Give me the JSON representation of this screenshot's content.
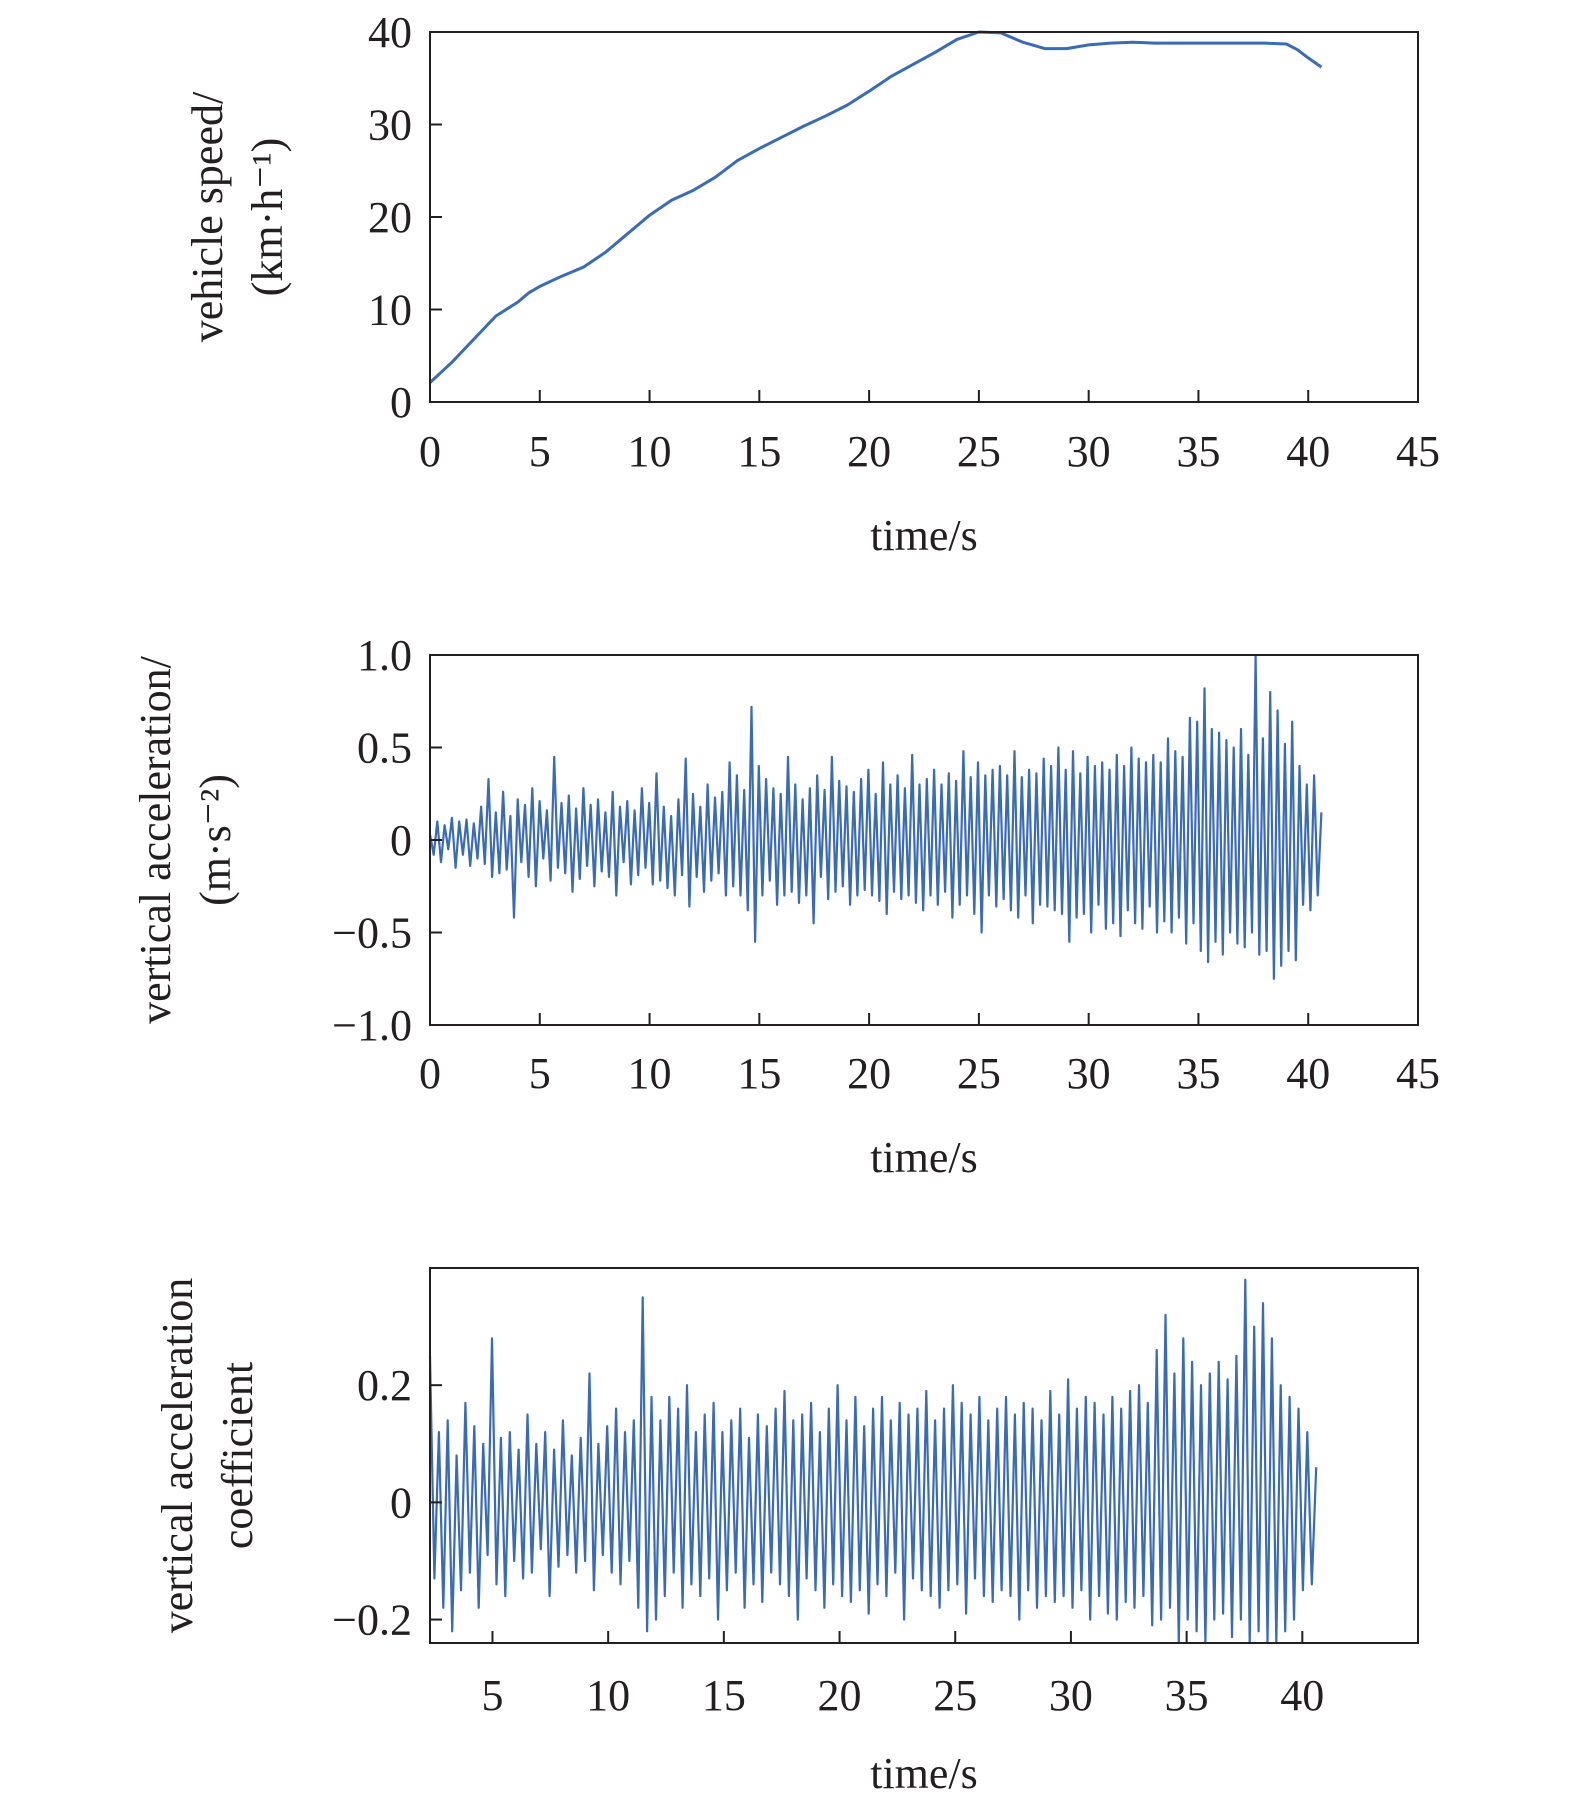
{
  "colors": {
    "series": "#3b6bb5",
    "axis": "#231f20"
  },
  "chart_data": [
    {
      "type": "line",
      "title": "",
      "xlabel": "time/s",
      "ylabel_lines": [
        "vehicle speed/",
        "(km·h⁻¹)"
      ],
      "xlim": [
        0,
        45
      ],
      "ylim": [
        0,
        40
      ],
      "xticks": [
        0,
        5,
        10,
        15,
        20,
        25,
        30,
        35,
        40,
        45
      ],
      "xtick_labels": [
        "0",
        "5",
        "10",
        "15",
        "20",
        "25",
        "30",
        "35",
        "40",
        "45"
      ],
      "yticks": [
        0,
        10,
        20,
        30,
        40
      ],
      "ytick_labels": [
        "0",
        "10",
        "20",
        "30",
        "40"
      ],
      "series": [
        {
          "name": "vehicle speed",
          "x": [
            0,
            1,
            2,
            3,
            4,
            4.5,
            5,
            6,
            7,
            8,
            9,
            10,
            11,
            12,
            13,
            14,
            15,
            16,
            17,
            18,
            19,
            20,
            21,
            22,
            23,
            24,
            25,
            26,
            27,
            28,
            29,
            30,
            31,
            32,
            33,
            34,
            35,
            36,
            37,
            38,
            39,
            39.5,
            40,
            40.6
          ],
          "y": [
            2.1,
            4.3,
            6.8,
            9.3,
            10.8,
            11.8,
            12.5,
            13.6,
            14.6,
            16.2,
            18.2,
            20.2,
            21.8,
            22.9,
            24.3,
            26.1,
            27.4,
            28.6,
            29.8,
            30.9,
            32.1,
            33.6,
            35.2,
            36.5,
            37.8,
            39.2,
            40.0,
            39.9,
            38.9,
            38.2,
            38.2,
            38.6,
            38.8,
            38.9,
            38.8,
            38.8,
            38.8,
            38.8,
            38.8,
            38.8,
            38.7,
            38.1,
            37.2,
            36.2
          ]
        }
      ]
    },
    {
      "type": "line",
      "title": "",
      "xlabel": "time/s",
      "ylabel_lines": [
        "vertical acceleration/",
        "(m·s⁻²)"
      ],
      "xlim": [
        0,
        45
      ],
      "ylim": [
        -1.0,
        1.0
      ],
      "xticks": [
        0,
        5,
        10,
        15,
        20,
        25,
        30,
        35,
        40,
        45
      ],
      "xtick_labels": [
        "0",
        "5",
        "10",
        "15",
        "20",
        "25",
        "30",
        "35",
        "40",
        "45"
      ],
      "yticks": [
        1.0,
        0.5,
        0,
        -0.5,
        -1.0
      ],
      "ytick_labels": [
        "1.0",
        "0.5",
        "0",
        "−0.5",
        "−1.0"
      ],
      "series": [
        {
          "name": "vertical acceleration",
          "x_start": 0,
          "x_end": 40.6,
          "y": [
            0.03,
            -0.08,
            0.1,
            -0.12,
            0.08,
            -0.05,
            0.12,
            -0.15,
            0.1,
            -0.08,
            0.11,
            -0.14,
            0.09,
            -0.1,
            0.18,
            -0.13,
            0.33,
            -0.2,
            0.15,
            -0.18,
            0.26,
            -0.16,
            0.13,
            -0.42,
            0.22,
            -0.12,
            0.19,
            -0.2,
            0.28,
            -0.25,
            0.21,
            -0.1,
            0.16,
            -0.22,
            0.45,
            -0.15,
            0.2,
            -0.18,
            0.24,
            -0.28,
            0.17,
            -0.21,
            0.28,
            -0.14,
            0.19,
            -0.25,
            0.22,
            -0.17,
            0.15,
            -0.2,
            0.26,
            -0.3,
            0.18,
            -0.12,
            0.21,
            -0.24,
            0.16,
            -0.19,
            0.28,
            -0.15,
            0.2,
            -0.24,
            0.36,
            -0.22,
            0.18,
            -0.26,
            0.13,
            -0.3,
            0.22,
            -0.19,
            0.44,
            -0.36,
            0.25,
            -0.2,
            0.18,
            -0.28,
            0.3,
            -0.22,
            0.23,
            -0.18,
            0.26,
            -0.3,
            0.42,
            -0.25,
            0.35,
            -0.3,
            0.27,
            -0.38,
            0.72,
            -0.55,
            0.4,
            -0.3,
            0.33,
            -0.22,
            0.28,
            -0.35,
            0.25,
            -0.3,
            0.45,
            -0.28,
            0.3,
            -0.34,
            0.22,
            -0.3,
            0.28,
            -0.45,
            0.35,
            -0.2,
            0.27,
            -0.32,
            0.45,
            -0.28,
            0.32,
            -0.25,
            0.29,
            -0.35,
            0.26,
            -0.3,
            0.33,
            -0.27,
            0.38,
            -0.3,
            0.25,
            -0.33,
            0.42,
            -0.4,
            0.3,
            -0.28,
            0.35,
            -0.32,
            0.28,
            -0.3,
            0.46,
            -0.34,
            0.3,
            -0.38,
            0.33,
            -0.3,
            0.38,
            -0.35,
            0.3,
            -0.28,
            0.36,
            -0.42,
            0.32,
            -0.35,
            0.48,
            -0.3,
            0.34,
            -0.4,
            0.42,
            -0.5,
            0.35,
            -0.3,
            0.38,
            -0.36,
            0.4,
            -0.32,
            0.35,
            -0.38,
            0.48,
            -0.42,
            0.34,
            -0.3,
            0.38,
            -0.45,
            0.36,
            -0.35,
            0.44,
            -0.36,
            0.4,
            -0.38,
            0.5,
            -0.4,
            0.38,
            -0.55,
            0.48,
            -0.42,
            0.36,
            -0.4,
            0.45,
            -0.5,
            0.4,
            -0.35,
            0.42,
            -0.48,
            0.38,
            -0.45,
            0.46,
            -0.52,
            0.4,
            -0.38,
            0.5,
            -0.45,
            0.44,
            -0.48,
            0.42,
            -0.36,
            0.46,
            -0.5,
            0.42,
            -0.44,
            0.55,
            -0.5,
            0.48,
            -0.42,
            0.45,
            -0.56,
            0.66,
            -0.45,
            0.64,
            -0.6,
            0.82,
            -0.66,
            0.6,
            -0.55,
            0.58,
            -0.62,
            0.54,
            -0.5,
            0.5,
            -0.56,
            0.6,
            -0.58,
            0.46,
            -0.5,
            1.0,
            -0.62,
            0.55,
            -0.6,
            0.8,
            -0.75,
            0.7,
            -0.68,
            0.52,
            -0.6,
            0.64,
            -0.65,
            0.4,
            -0.35,
            0.3,
            -0.38,
            0.35,
            -0.3,
            0.15
          ]
        }
      ]
    },
    {
      "type": "line",
      "title": "",
      "xlabel": "time/s",
      "ylabel_lines": [
        "vertical acceleration",
        "coefficient"
      ],
      "xlim": [
        2.3,
        45
      ],
      "ylim": [
        -0.24,
        0.4
      ],
      "xticks": [
        5,
        10,
        15,
        20,
        25,
        30,
        35,
        40
      ],
      "xtick_labels": [
        "5",
        "10",
        "15",
        "20",
        "25",
        "30",
        "35",
        "40"
      ],
      "yticks": [
        0.2,
        0,
        -0.2
      ],
      "ytick_labels": [
        "0.2",
        "0",
        "−0.2"
      ],
      "series": [
        {
          "name": "vertical acceleration coefficient",
          "x_start": 2.3,
          "x_end": 40.6,
          "y": [
            0.25,
            -0.13,
            0.12,
            -0.18,
            0.14,
            -0.22,
            0.08,
            -0.15,
            0.17,
            -0.12,
            0.13,
            -0.18,
            0.1,
            -0.09,
            0.28,
            -0.14,
            0.11,
            -0.16,
            0.12,
            -0.1,
            0.09,
            -0.13,
            0.15,
            -0.12,
            0.1,
            -0.08,
            0.12,
            -0.16,
            0.09,
            -0.11,
            0.14,
            -0.09,
            0.08,
            -0.12,
            0.11,
            -0.1,
            0.22,
            -0.15,
            0.1,
            -0.09,
            0.13,
            -0.12,
            0.16,
            -0.14,
            0.12,
            -0.1,
            0.14,
            -0.18,
            0.35,
            -0.22,
            0.18,
            -0.2,
            0.14,
            -0.16,
            0.18,
            -0.12,
            0.16,
            -0.18,
            0.2,
            -0.14,
            0.12,
            -0.16,
            0.15,
            -0.13,
            0.17,
            -0.2,
            0.12,
            -0.15,
            0.14,
            -0.12,
            0.16,
            -0.18,
            0.11,
            -0.14,
            0.15,
            -0.17,
            0.13,
            -0.12,
            0.16,
            -0.14,
            0.19,
            -0.16,
            0.14,
            -0.2,
            0.15,
            -0.13,
            0.17,
            -0.15,
            0.12,
            -0.18,
            0.16,
            -0.14,
            0.2,
            -0.16,
            0.14,
            -0.17,
            0.18,
            -0.15,
            0.13,
            -0.19,
            0.16,
            -0.14,
            0.18,
            -0.16,
            0.14,
            -0.12,
            0.17,
            -0.2,
            0.15,
            -0.13,
            0.16,
            -0.15,
            0.19,
            -0.16,
            0.14,
            -0.18,
            0.16,
            -0.15,
            0.2,
            -0.14,
            0.17,
            -0.19,
            0.15,
            -0.13,
            0.18,
            -0.16,
            0.14,
            -0.17,
            0.16,
            -0.15,
            0.18,
            -0.16,
            0.15,
            -0.2,
            0.17,
            -0.15,
            0.16,
            -0.18,
            0.14,
            -0.16,
            0.19,
            -0.17,
            0.15,
            -0.16,
            0.21,
            -0.18,
            0.16,
            -0.15,
            0.18,
            -0.2,
            0.17,
            -0.16,
            0.15,
            -0.19,
            0.18,
            -0.2,
            0.16,
            -0.17,
            0.19,
            -0.18,
            0.2,
            -0.16,
            0.17,
            -0.21,
            0.26,
            -0.2,
            0.32,
            -0.18,
            0.22,
            -0.24,
            0.28,
            -0.2,
            0.24,
            -0.22,
            0.2,
            -0.25,
            0.22,
            -0.2,
            0.24,
            -0.19,
            0.21,
            -0.23,
            0.25,
            -0.2,
            0.38,
            -0.24,
            0.3,
            -0.22,
            0.34,
            -0.26,
            0.28,
            -0.24,
            0.2,
            -0.22,
            0.18,
            -0.2,
            0.16,
            -0.15,
            0.12,
            -0.14,
            0.06
          ]
        }
      ]
    }
  ]
}
